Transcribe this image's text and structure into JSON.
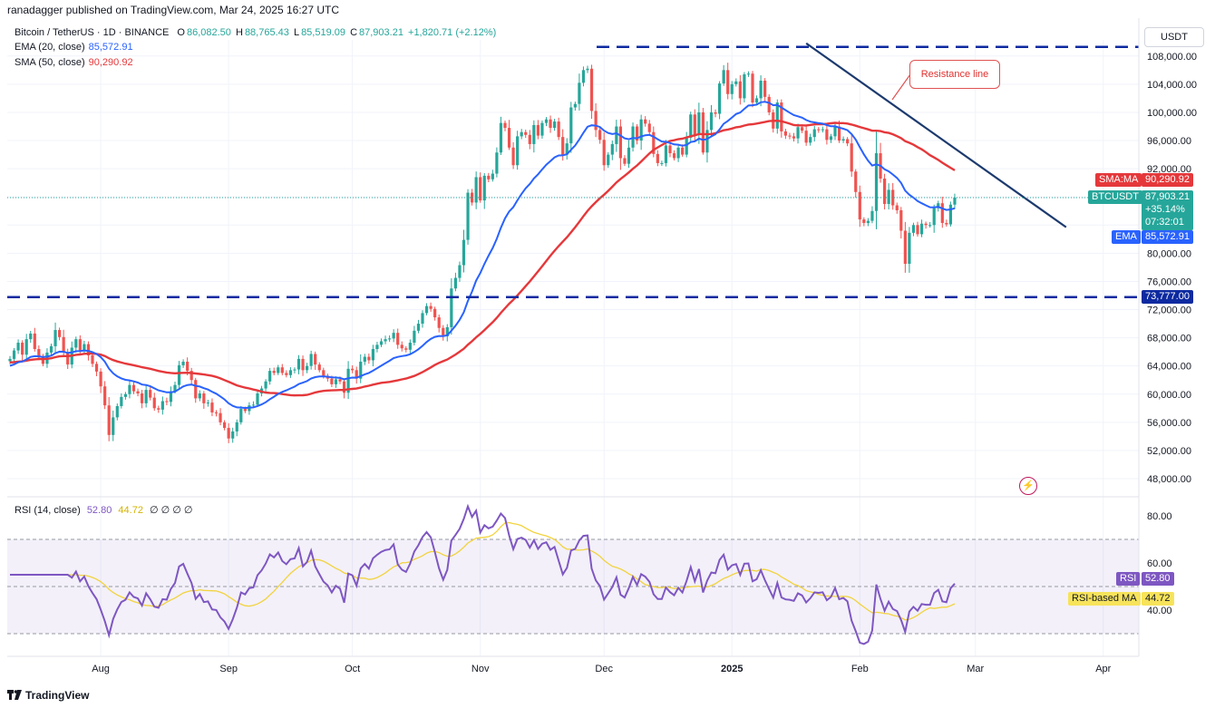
{
  "publisher": "ranadagger published on TradingView.com, Mar 24, 2025 16:27 UTC",
  "symbol": {
    "title": "Bitcoin / TetherUS · 1D · BINANCE",
    "ohlc": {
      "o_label": "O",
      "o": "86,082.50",
      "h_label": "H",
      "h": "88,765.43",
      "l_label": "L",
      "l": "85,519.09",
      "c_label": "C",
      "c": "87,903.21",
      "change": "+1,820.71 (+2.12%)"
    },
    "ema_label": "EMA (20, close)",
    "ema_value": "85,572.91",
    "sma_label": "SMA (50, close)",
    "sma_value": "90,290.92"
  },
  "rsi_legend": {
    "label": "RSI (14, close)",
    "rsi": "52.80",
    "ma": "44.72",
    "extra": "∅ ∅ ∅ ∅"
  },
  "currency": "USDT",
  "badges": {
    "sma_tag": "SMA:MA",
    "sma_value": "90,290.92",
    "btc_tag": "BTCUSDT",
    "btc_value": "87,903.21",
    "btc_change": "+35.14%",
    "btc_timer": "07:32:01",
    "ema_tag": "EMA",
    "ema_value": "85,572.91",
    "support_value": "73,777.00",
    "rsi_tag": "RSI",
    "rsi_value": "52.80",
    "rsi_ma_tag": "RSI-based MA",
    "rsi_ma_value": "44.72"
  },
  "annotation": "Resistance line",
  "brand": "TradingView",
  "colors": {
    "up": "#26a69a",
    "down": "#ef5350",
    "ema": "#2962ff",
    "sma": "#e5383b",
    "rsi": "#7e57c2",
    "rsi_ma": "#f2d33d",
    "hline": "#0d2aa0",
    "trend": "#1c3a6e"
  },
  "chart_data": [
    {
      "type": "candlestick",
      "title": "Bitcoin / TetherUS · 1D · BINANCE",
      "y_ticks": [
        "48,000.00",
        "52,000.00",
        "56,000.00",
        "60,000.00",
        "64,000.00",
        "68,000.00",
        "72,000.00",
        "76,000.00",
        "80,000.00",
        "84,000.00",
        "88,000.00",
        "92,000.00",
        "96,000.00",
        "100,000.00",
        "104,000.00",
        "108,000.00"
      ],
      "ylim": [
        46000,
        109800
      ],
      "x_ticks": [
        "Aug",
        "Sep",
        "Oct",
        "Nov",
        "Dec",
        "2025",
        "Feb",
        "Mar",
        "Apr"
      ],
      "x_tick_days": [
        22,
        53,
        83,
        114,
        144,
        175,
        206,
        234,
        265
      ],
      "daily_closes_from_2024_07_10": [
        65000,
        66200,
        67300,
        65600,
        67800,
        68600,
        66400,
        65200,
        64300,
        65900,
        66800,
        69100,
        68100,
        65900,
        64200,
        66600,
        67800,
        66200,
        67100,
        65500,
        64300,
        63200,
        61100,
        58400,
        54200,
        56700,
        58300,
        59600,
        60000,
        61300,
        60400,
        60100,
        58700,
        60600,
        59500,
        58000,
        57800,
        59000,
        58900,
        60400,
        61300,
        64100,
        64600,
        63300,
        62000,
        59400,
        60100,
        58700,
        58800,
        57400,
        57300,
        56000,
        55200,
        53700,
        54700,
        56000,
        57900,
        57600,
        58400,
        58500,
        60100,
        60800,
        61800,
        63300,
        63000,
        63800,
        63000,
        62700,
        63400,
        63500,
        65000,
        63400,
        64000,
        65700,
        64200,
        63400,
        62600,
        62200,
        61400,
        62100,
        61800,
        60200,
        63600,
        63400,
        62200,
        64600,
        65300,
        64800,
        66400,
        67000,
        67500,
        67800,
        67900,
        68700,
        67000,
        66500,
        66300,
        67300,
        69000,
        70000,
        71500,
        72500,
        72100,
        70900,
        69400,
        68200,
        69500,
        75000,
        76500,
        78300,
        81900,
        88600,
        87200,
        90800,
        87500,
        91000,
        90500,
        91300,
        94300,
        98500,
        97800,
        95000,
        92500,
        96600,
        97200,
        96800,
        95500,
        98200,
        96700,
        98500,
        99000,
        97800,
        98700,
        96500,
        94000,
        95600,
        100700,
        101200,
        104200,
        106000,
        106200,
        100200,
        97500,
        96100,
        92500,
        94000,
        95500,
        98000,
        93500,
        92700,
        95000,
        98000,
        96000,
        99000,
        98400,
        97200,
        94100,
        92800,
        92800,
        95300,
        94200,
        93500,
        95000,
        94000,
        96400,
        99700,
        96800,
        100000,
        94300,
        97500,
        100000,
        99800,
        104100,
        106000,
        102600,
        104000,
        104400,
        102000,
        105400,
        105500,
        101400,
        102000,
        104500,
        102200,
        100000,
        97700,
        101400,
        97300,
        96700,
        96600,
        96300,
        97900,
        97400,
        95700,
        96500,
        97600,
        97500,
        97600,
        96100,
        96600,
        98000,
        96000,
        96200,
        95600,
        91600,
        88700,
        84800,
        84300,
        84600,
        86000,
        94200,
        90600,
        87000,
        89000,
        86800,
        86100,
        83200,
        78500,
        82900,
        84000,
        82700,
        84200,
        84000,
        84000,
        86400,
        87100,
        84300,
        84100,
        86900,
        87900
      ]
    },
    {
      "type": "line",
      "series": [
        {
          "name": "EMA (20, close)",
          "color": "#2962ff"
        },
        {
          "name": "SMA (50, close)",
          "color": "#e5383b"
        }
      ]
    },
    {
      "type": "line",
      "title": "RSI (14, close)",
      "y_ticks": [
        "40.00",
        "60.00",
        "80.00"
      ],
      "ylim": [
        19,
        90
      ],
      "bands": [
        30,
        50,
        70
      ],
      "series": [
        {
          "name": "RSI (14, close)",
          "color": "#7e57c2"
        },
        {
          "name": "RSI-based MA",
          "color": "#f2d33d"
        }
      ]
    },
    {
      "type": "annotations",
      "horizontal_levels": [
        {
          "price": 109300,
          "style": "dashed"
        },
        {
          "price": 73777,
          "style": "dashed",
          "label": "73,777.00"
        }
      ],
      "trendline": {
        "from_day": 193,
        "from_price": 109800,
        "to_day": 256,
        "to_price": 83700,
        "label": "Resistance line"
      }
    }
  ]
}
